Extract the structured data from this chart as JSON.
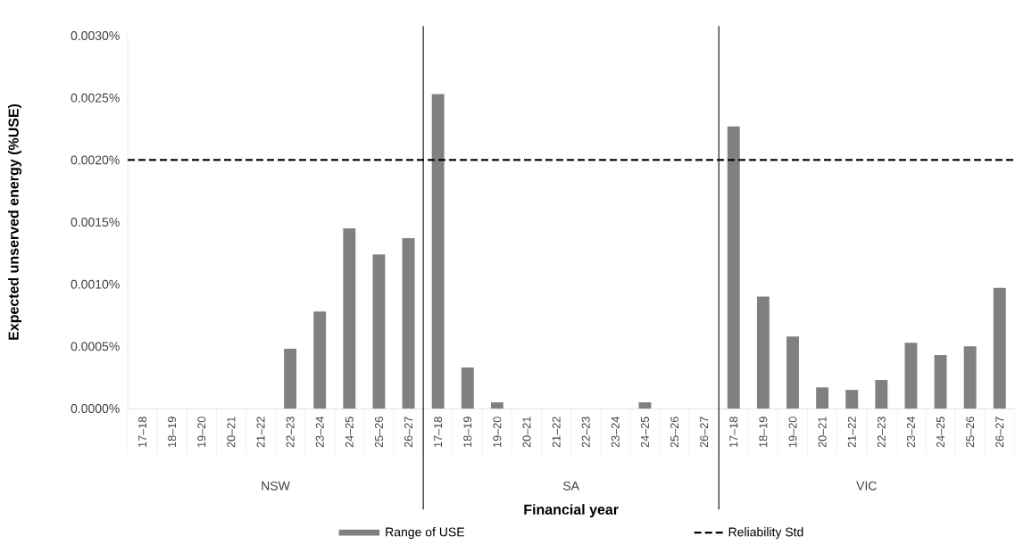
{
  "chart_data": {
    "type": "bar",
    "xlabel": "Financial year",
    "ylabel": "Expected unserved energy (%USE)",
    "categories": [
      "17–18",
      "18–19",
      "19–20",
      "20–21",
      "21–22",
      "22–23",
      "23–24",
      "24–25",
      "25–26",
      "26–27",
      "17–18",
      "18–19",
      "19–20",
      "20–21",
      "21–22",
      "22–23",
      "23–24",
      "24–25",
      "25–26",
      "26–27",
      "17–18",
      "18–19",
      "19–20",
      "20–21",
      "21–22",
      "22–23",
      "23–24",
      "24–25",
      "25–26",
      "26–27"
    ],
    "series": [
      {
        "name": "Range of USE",
        "color": "#808080",
        "values": [
          0,
          0,
          0,
          0,
          0,
          0.00048,
          0.00078,
          0.00145,
          0.00124,
          0.00137,
          0.00253,
          0.00033,
          5e-05,
          0,
          0,
          0,
          0,
          5e-05,
          0,
          0,
          0.00227,
          0.0009,
          0.00058,
          0.00017,
          0.00015,
          0.00023,
          0.00053,
          0.00043,
          0.0005,
          0.00097
        ]
      }
    ],
    "ylim": [
      0,
      0.003
    ],
    "yticks": [
      {
        "value": 0,
        "label": "0.0000%"
      },
      {
        "value": 0.0005,
        "label": "0.0005%"
      },
      {
        "value": 0.001,
        "label": "0.0010%"
      },
      {
        "value": 0.0015,
        "label": "0.0015%"
      },
      {
        "value": 0.002,
        "label": "0.0020%"
      },
      {
        "value": 0.0025,
        "label": "0.0025%"
      },
      {
        "value": 0.003,
        "label": "0.0030%"
      }
    ],
    "ref_lines": [
      {
        "axis": "y",
        "value": 0.002,
        "label": "Reliability Std",
        "color": "#000000",
        "line_style": "dashed"
      }
    ],
    "annotations": [
      "NSW",
      "SA",
      "VIC"
    ],
    "legend": "bottom",
    "grid": false
  }
}
